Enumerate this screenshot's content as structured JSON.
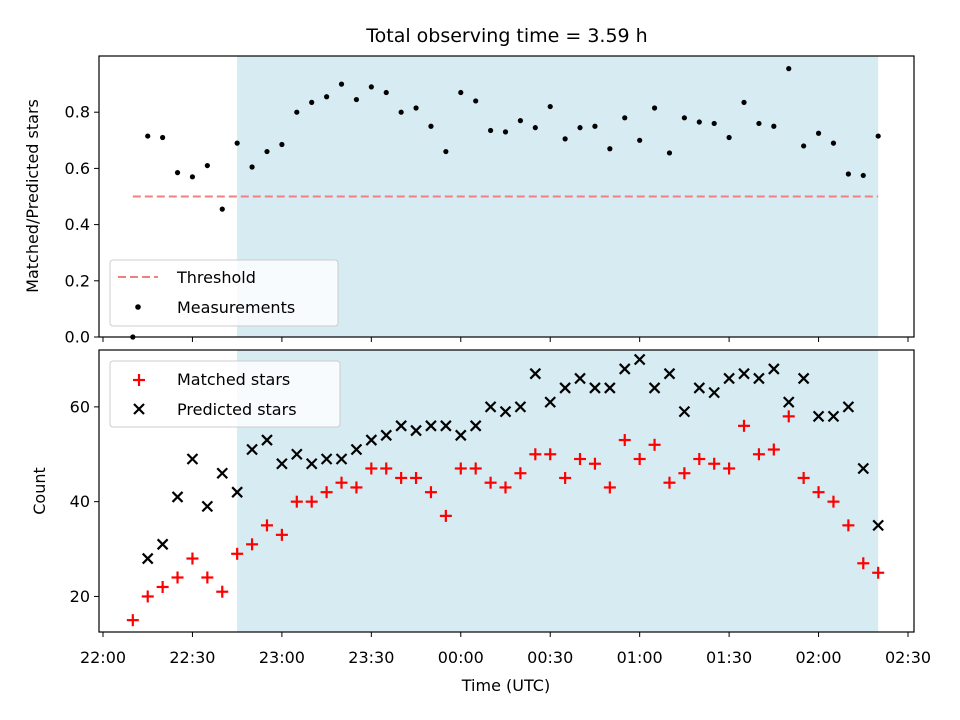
{
  "title": "Total observing time = 3.59 h",
  "colors": {
    "shade": "#add8e6",
    "threshold": "#f08080",
    "measurement": "#000000",
    "matched": "#ff0000",
    "predicted": "#000000"
  },
  "chart_data": [
    {
      "type": "scatter",
      "ylabel": "Matched/Predicted stars",
      "xlabel": "",
      "ylim": [
        0,
        1.0
      ],
      "y_ticks": [
        0.0,
        0.2,
        0.4,
        0.6,
        0.8
      ],
      "y_tick_labels": [
        "0.0",
        "0.2",
        "0.4",
        "0.6",
        "0.8"
      ],
      "observing_window": [
        "22:45",
        "02:20"
      ],
      "legend": {
        "placement": "lower-left",
        "entries": [
          "Threshold",
          "Measurements"
        ]
      },
      "threshold": {
        "name": "Threshold",
        "y": 0.5,
        "x_range": [
          "22:10",
          "02:20"
        ]
      },
      "series": [
        {
          "name": "Measurements",
          "x": [
            "22:10",
            "22:15",
            "22:20",
            "22:25",
            "22:30",
            "22:35",
            "22:40",
            "22:45",
            "22:50",
            "22:55",
            "23:00",
            "23:05",
            "23:10",
            "23:15",
            "23:20",
            "23:25",
            "23:30",
            "23:35",
            "23:40",
            "23:45",
            "23:50",
            "23:55",
            "00:00",
            "00:05",
            "00:10",
            "00:15",
            "00:20",
            "00:25",
            "00:30",
            "00:35",
            "00:40",
            "00:45",
            "00:50",
            "00:55",
            "01:00",
            "01:05",
            "01:10",
            "01:15",
            "01:20",
            "01:25",
            "01:30",
            "01:35",
            "01:40",
            "01:45",
            "01:50",
            "01:55",
            "02:00",
            "02:05",
            "02:10",
            "02:15",
            "02:20"
          ],
          "y": [
            0.0,
            0.715,
            0.71,
            0.585,
            0.57,
            0.61,
            0.455,
            0.69,
            0.605,
            0.66,
            0.685,
            0.8,
            0.835,
            0.855,
            0.9,
            0.845,
            0.89,
            0.87,
            0.8,
            0.815,
            0.75,
            0.66,
            0.87,
            0.84,
            0.735,
            0.73,
            0.77,
            0.745,
            0.82,
            0.705,
            0.745,
            0.75,
            0.67,
            0.78,
            0.7,
            0.815,
            0.655,
            0.78,
            0.765,
            0.76,
            0.71,
            0.835,
            0.76,
            0.75,
            0.955,
            0.68,
            0.725,
            0.69,
            0.58,
            0.575,
            0.715
          ]
        }
      ]
    },
    {
      "type": "scatter",
      "ylabel": "Count",
      "xlabel": "Time (UTC)",
      "ylim": [
        12.5,
        72
      ],
      "y_ticks": [
        20,
        40,
        60
      ],
      "x_ticks": [
        "22:00",
        "22:30",
        "23:00",
        "23:30",
        "00:00",
        "00:30",
        "01:00",
        "01:30",
        "02:00",
        "02:30"
      ],
      "observing_window": [
        "22:45",
        "02:20"
      ],
      "legend": {
        "placement": "upper-left",
        "entries": [
          "Matched stars",
          "Predicted stars"
        ]
      },
      "series": [
        {
          "name": "Matched stars",
          "x": [
            "22:10",
            "22:15",
            "22:20",
            "22:25",
            "22:30",
            "22:35",
            "22:40",
            "22:45",
            "22:50",
            "22:55",
            "23:00",
            "23:05",
            "23:10",
            "23:15",
            "23:20",
            "23:25",
            "23:30",
            "23:35",
            "23:40",
            "23:45",
            "23:50",
            "23:55",
            "00:00",
            "00:05",
            "00:10",
            "00:15",
            "00:20",
            "00:25",
            "00:30",
            "00:35",
            "00:40",
            "00:45",
            "00:50",
            "00:55",
            "01:00",
            "01:05",
            "01:10",
            "01:15",
            "01:20",
            "01:25",
            "01:30",
            "01:35",
            "01:40",
            "01:45",
            "01:50",
            "01:55",
            "02:00",
            "02:05",
            "02:10",
            "02:15",
            "02:20"
          ],
          "y": [
            15,
            20,
            22,
            24,
            28,
            24,
            21,
            29,
            31,
            35,
            33,
            40,
            40,
            42,
            44,
            43,
            47,
            47,
            45,
            45,
            42,
            37,
            47,
            47,
            44,
            43,
            46,
            50,
            50,
            45,
            49,
            48,
            43,
            53,
            49,
            52,
            44,
            46,
            49,
            48,
            47,
            56,
            50,
            51,
            58,
            45,
            42,
            40,
            35,
            27,
            25
          ]
        },
        {
          "name": "Predicted stars",
          "x": [
            "22:15",
            "22:20",
            "22:25",
            "22:30",
            "22:35",
            "22:40",
            "22:45",
            "22:50",
            "22:55",
            "23:00",
            "23:05",
            "23:10",
            "23:15",
            "23:20",
            "23:25",
            "23:30",
            "23:35",
            "23:40",
            "23:45",
            "23:50",
            "23:55",
            "00:00",
            "00:05",
            "00:10",
            "00:15",
            "00:20",
            "00:25",
            "00:30",
            "00:35",
            "00:40",
            "00:45",
            "00:50",
            "00:55",
            "01:00",
            "01:05",
            "01:10",
            "01:15",
            "01:20",
            "01:25",
            "01:30",
            "01:35",
            "01:40",
            "01:45",
            "01:50",
            "01:55",
            "02:00",
            "02:05",
            "02:10",
            "02:15",
            "02:20"
          ],
          "y": [
            28,
            31,
            41,
            49,
            39,
            46,
            42,
            51,
            53,
            48,
            50,
            48,
            49,
            49,
            51,
            53,
            54,
            56,
            55,
            56,
            56,
            54,
            56,
            60,
            59,
            60,
            67,
            61,
            64,
            66,
            64,
            64,
            68,
            70,
            64,
            67,
            59,
            64,
            63,
            66,
            67,
            66,
            68,
            61,
            66,
            58,
            58,
            60,
            47,
            35
          ]
        }
      ]
    }
  ]
}
